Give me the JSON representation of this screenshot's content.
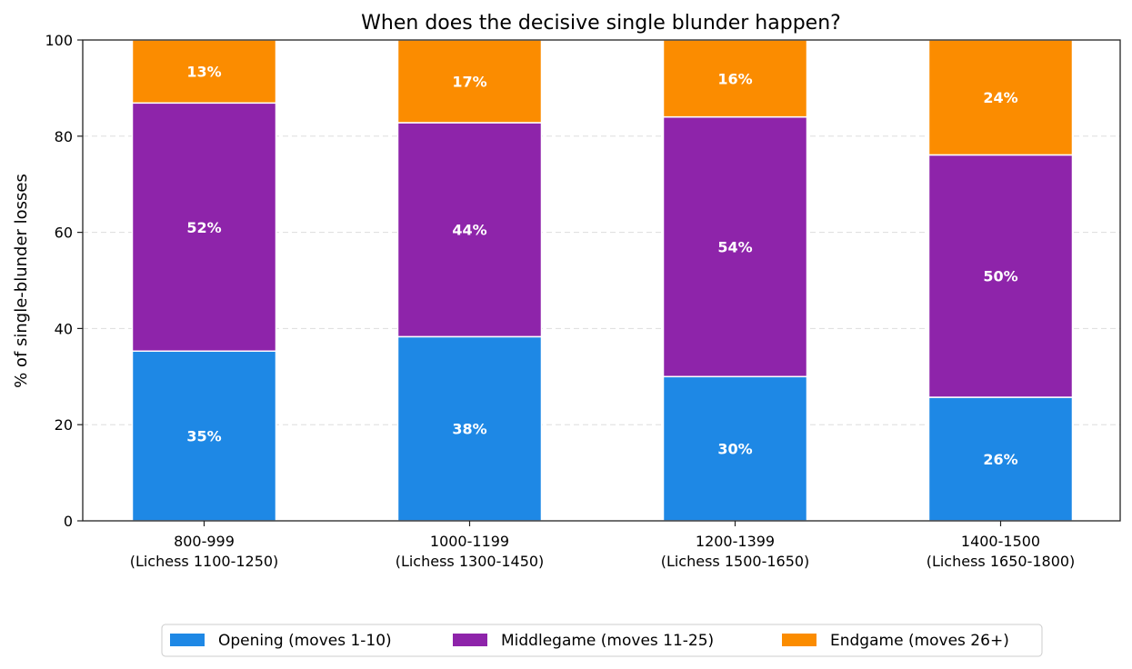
{
  "chart_data": {
    "type": "bar",
    "stacked": true,
    "title": "When does the decisive single blunder happen?",
    "xlabel": "",
    "ylabel": "% of single-blunder losses",
    "ylim": [
      0,
      100
    ],
    "yticks": [
      "0",
      "20",
      "40",
      "60",
      "80",
      "100"
    ],
    "grid": true,
    "legend_position": "bottom-center",
    "categories": [
      [
        "800-999",
        "(Lichess 1100-1250)"
      ],
      [
        "1000-1199",
        "(Lichess 1300-1450)"
      ],
      [
        "1200-1399",
        "(Lichess 1500-1650)"
      ],
      [
        "1400-1500",
        "(Lichess 1650-1800)"
      ]
    ],
    "series": [
      {
        "name": "Opening (moves 1-10)",
        "color": "#1e88e5",
        "values": [
          35.3,
          38.3,
          30.0,
          25.7
        ],
        "labels": [
          "35%",
          "38%",
          "30%",
          "26%"
        ]
      },
      {
        "name": "Middlegame (moves 11-25)",
        "color": "#8e24aa",
        "values": [
          51.6,
          44.5,
          54.0,
          50.4
        ],
        "labels": [
          "52%",
          "44%",
          "54%",
          "50%"
        ]
      },
      {
        "name": "Endgame (moves 26+)",
        "color": "#fb8c00",
        "values": [
          13.1,
          17.2,
          16.0,
          23.9
        ],
        "labels": [
          "13%",
          "17%",
          "16%",
          "24%"
        ]
      }
    ]
  }
}
